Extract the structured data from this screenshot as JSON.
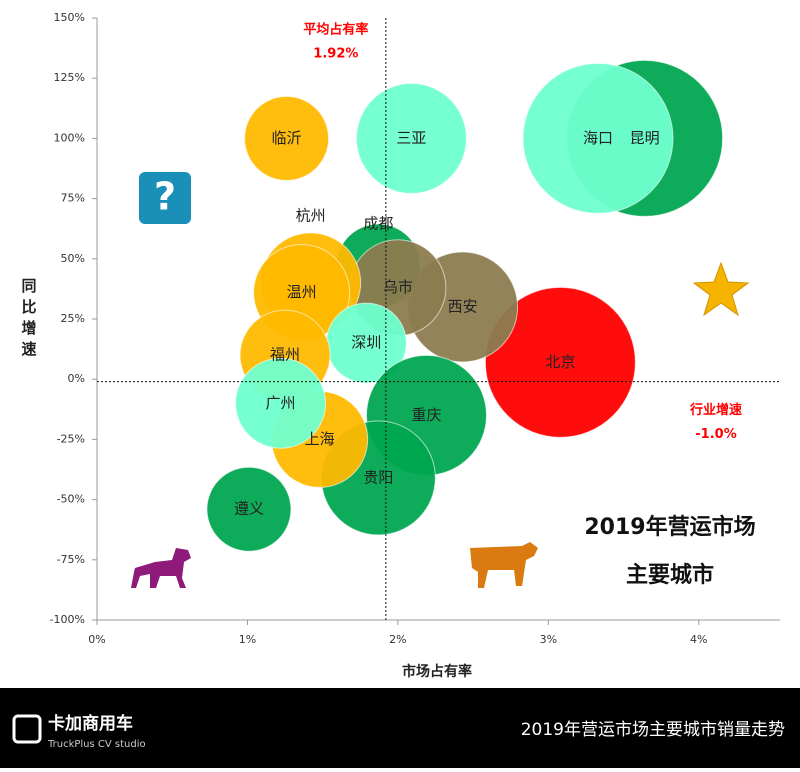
{
  "chart_data": {
    "type": "bubble",
    "title": "2019年营运市场",
    "subtitle": "主要城市",
    "x_label": "市场占有率",
    "y_label": "同比增速",
    "xlim": [
      0,
      4.5
    ],
    "ylim": [
      -100,
      150
    ],
    "xticks": [
      {
        "value": 0,
        "label": "0%"
      },
      {
        "value": 1,
        "label": "1%"
      },
      {
        "value": 2,
        "label": "2%"
      },
      {
        "value": 3,
        "label": "3%"
      },
      {
        "value": 4,
        "label": "4%"
      }
    ],
    "yticks": [
      {
        "value": -100,
        "label": "-100%"
      },
      {
        "value": -75,
        "label": "-75%"
      },
      {
        "value": -50,
        "label": "-50%"
      },
      {
        "value": -25,
        "label": "-25%"
      },
      {
        "value": 0,
        "label": "0%"
      },
      {
        "value": 25,
        "label": "25%"
      },
      {
        "value": 50,
        "label": "50%"
      },
      {
        "value": 75,
        "label": "75%"
      },
      {
        "value": 100,
        "label": "100%"
      },
      {
        "value": 125,
        "label": "125%"
      },
      {
        "value": 150,
        "label": "150%"
      }
    ],
    "reference_x": {
      "name": "平均占有率",
      "value": 1.92,
      "value_label": "1.92%",
      "color": "#ff0000"
    },
    "reference_y": {
      "name": "行业增速",
      "value": -1.0,
      "value_label": "-1.0%",
      "color": "#ff0000"
    },
    "points": [
      {
        "label": "昆明",
        "x": 3.64,
        "y": 100,
        "size": 78,
        "color": "#00a651"
      },
      {
        "label": "海口",
        "x": 3.33,
        "y": 100,
        "size": 75,
        "color": "#6fffcf"
      },
      {
        "label": "临沂",
        "x": 1.26,
        "y": 100,
        "size": 42,
        "color": "#ffb900"
      },
      {
        "label": "三亚",
        "x": 2.09,
        "y": 100,
        "size": 55,
        "color": "#6fffcf"
      },
      {
        "label": "北京",
        "x": 3.08,
        "y": 7,
        "size": 75,
        "color": "#ff0000"
      },
      {
        "label": "西安",
        "x": 2.43,
        "y": 30,
        "size": 55,
        "color": "#8c7c50"
      },
      {
        "label": "成都",
        "x": 1.87,
        "y": 47,
        "size": 42,
        "color": "#00a651"
      },
      {
        "label": "乌市",
        "x": 2.0,
        "y": 38,
        "size": 48,
        "color": "#8c7c50"
      },
      {
        "label": "杭州",
        "x": 1.42,
        "y": 40,
        "size": 50,
        "color": "#ffb900"
      },
      {
        "label": "温州",
        "x": 1.36,
        "y": 36,
        "size": 48,
        "color": "#ffb900"
      },
      {
        "label": "深圳",
        "x": 1.79,
        "y": 15,
        "size": 40,
        "color": "#6fffcf"
      },
      {
        "label": "福州",
        "x": 1.25,
        "y": 10,
        "size": 45,
        "color": "#ffb900"
      },
      {
        "label": "重庆",
        "x": 2.19,
        "y": -15,
        "size": 60,
        "color": "#00a651"
      },
      {
        "label": "贵阳",
        "x": 1.87,
        "y": -41,
        "size": 57,
        "color": "#00a651"
      },
      {
        "label": "上海",
        "x": 1.48,
        "y": -25,
        "size": 48,
        "color": "#ffb900"
      },
      {
        "label": "广州",
        "x": 1.22,
        "y": -10,
        "size": 45,
        "color": "#6fffcf"
      },
      {
        "label": "遵义",
        "x": 1.01,
        "y": -54,
        "size": 42,
        "color": "#00a651"
      }
    ]
  },
  "footer": {
    "brand": "卡加商用车",
    "brand_en": "TruckPlus CV studio",
    "caption": "2019年营运市场主要城市销量走势"
  }
}
